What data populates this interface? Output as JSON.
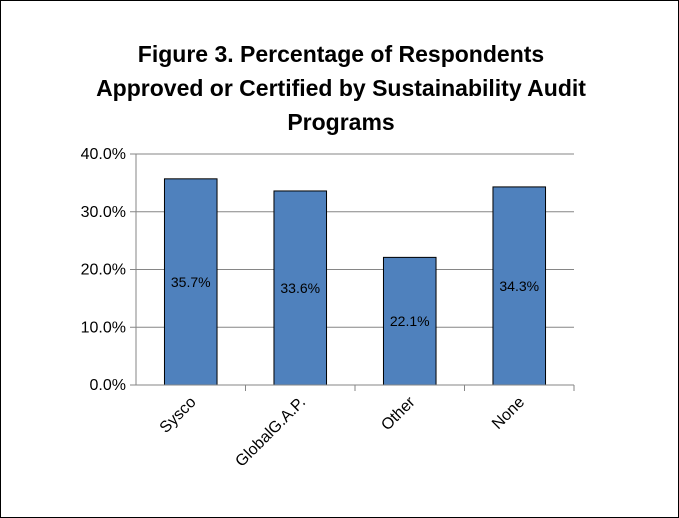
{
  "chart_data": {
    "type": "bar",
    "title_lines": [
      "Figure 3. Percentage of Respondents",
      "Approved or Certified by Sustainability Audit",
      "Programs"
    ],
    "categories": [
      "Sysco",
      "GlobalG.A.P.",
      "Other",
      "None"
    ],
    "values": [
      35.7,
      33.6,
      22.1,
      34.3
    ],
    "data_labels": [
      "35.7%",
      "33.6%",
      "22.1%",
      "34.3%"
    ],
    "y_ticks": [
      0,
      10,
      20,
      30,
      40
    ],
    "y_tick_labels": [
      "0.0%",
      "10.0%",
      "20.0%",
      "30.0%",
      "40.0%"
    ],
    "ylim": [
      0,
      40
    ],
    "grid": true,
    "legend": "none",
    "colors": {
      "bar_fill": "#4f81bd",
      "bar_stroke": "#000000",
      "grid": "#868686",
      "axis": "#868686"
    }
  }
}
